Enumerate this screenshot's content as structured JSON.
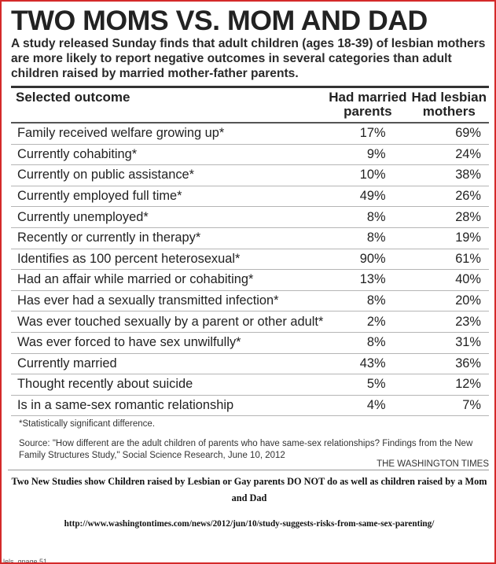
{
  "headline": "TWO MOMS VS. MOM AND DAD",
  "intro": "A study released Sunday finds that adult children (ages 18-39) of lesbian mothers are more likely to report negative outcomes in several categories than adult children raised by married mother-father parents.",
  "table": {
    "headers": {
      "outcome": "Selected outcome",
      "married": "Had married parents",
      "lesbian": "Had lesbian mothers"
    },
    "rows": [
      {
        "outcome": "Family received welfare growing up*",
        "married": "17%",
        "lesbian": "69%"
      },
      {
        "outcome": "Currently cohabiting*",
        "married": "9%",
        "lesbian": "24%"
      },
      {
        "outcome": "Currently on public assistance*",
        "married": "10%",
        "lesbian": "38%"
      },
      {
        "outcome": "Currently employed full time*",
        "married": "49%",
        "lesbian": "26%"
      },
      {
        "outcome": "Currently unemployed*",
        "married": "8%",
        "lesbian": "28%"
      },
      {
        "outcome": "Recently or currently in therapy*",
        "married": "8%",
        "lesbian": "19%"
      },
      {
        "outcome": "Identifies as 100 percent heterosexual*",
        "married": "90%",
        "lesbian": "61%"
      },
      {
        "outcome": "Had an affair while married or cohabiting*",
        "married": "13%",
        "lesbian": "40%"
      },
      {
        "outcome": "Has ever had a sexually transmitted infection*",
        "married": "8%",
        "lesbian": "20%"
      },
      {
        "outcome": "Was ever touched sexually by a parent or other adult*",
        "married": "2%",
        "lesbian": "23%"
      },
      {
        "outcome": "Was ever forced to have sex unwilfully*",
        "married": "8%",
        "lesbian": "31%"
      },
      {
        "outcome": "Currently married",
        "married": "43%",
        "lesbian": "36%"
      },
      {
        "outcome": "Thought recently about suicide",
        "married": "5%",
        "lesbian": "12%"
      },
      {
        "outcome": "Is in a same-sex romantic relationship",
        "married": "4%",
        "lesbian": "7%"
      }
    ]
  },
  "footnote": "*Statistically significant difference.",
  "source": "Source: \"How different are the adult children of parents who have same-sex relationships? Findings from the New Family Structures Study,\" Social Science Research, June 10, 2012",
  "brand": "THE WASHINGTON TIMES",
  "caption": "Two New Studies show Children raised by Lesbian or Gay parents DO NOT do as well as children raised by a Mom and Dad",
  "url": "http://www.washingtontimes.com/news/2012/jun/10/study-suggests-risks-from-same-sex-parenting/",
  "corner_text": "lels_gpage.51"
}
